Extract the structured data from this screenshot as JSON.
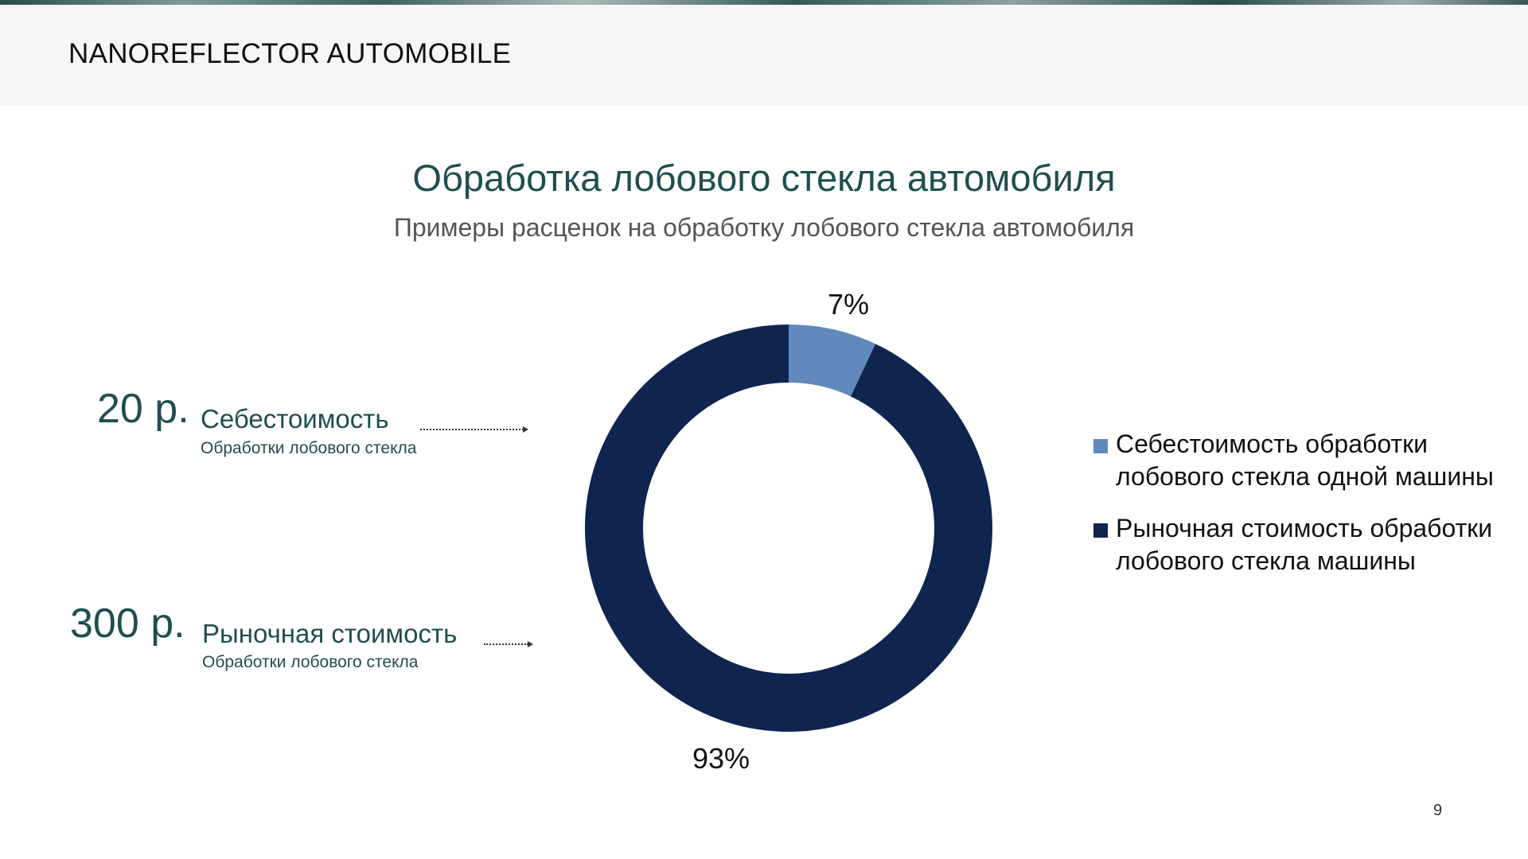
{
  "header": {
    "brand": "NANOREFLECTOR AUTOMOBILE"
  },
  "slide": {
    "title": "Обработка лобового стекла автомобиля",
    "subtitle": "Примеры расценок на обработку лобового стекла автомобиля",
    "page_number": "9"
  },
  "callouts": [
    {
      "price": "20 р.",
      "label": "Себестоимость",
      "sub": "Обработки лобового стекла"
    },
    {
      "price": "300 р.",
      "label": "Рыночная стоимость",
      "sub": "Обработки лобового стекла"
    }
  ],
  "chart_data": {
    "type": "pie",
    "donut": true,
    "title": "",
    "legend_position": "right",
    "series": [
      {
        "name": "Себестоимость обработки лобового стекла одной машины",
        "value": 7,
        "label": "7%",
        "color": "#6289bd"
      },
      {
        "name": "Рыночная стоимость обработки лобового стекла машины",
        "value": 93,
        "label": "93%",
        "color": "#0f2550"
      }
    ]
  }
}
